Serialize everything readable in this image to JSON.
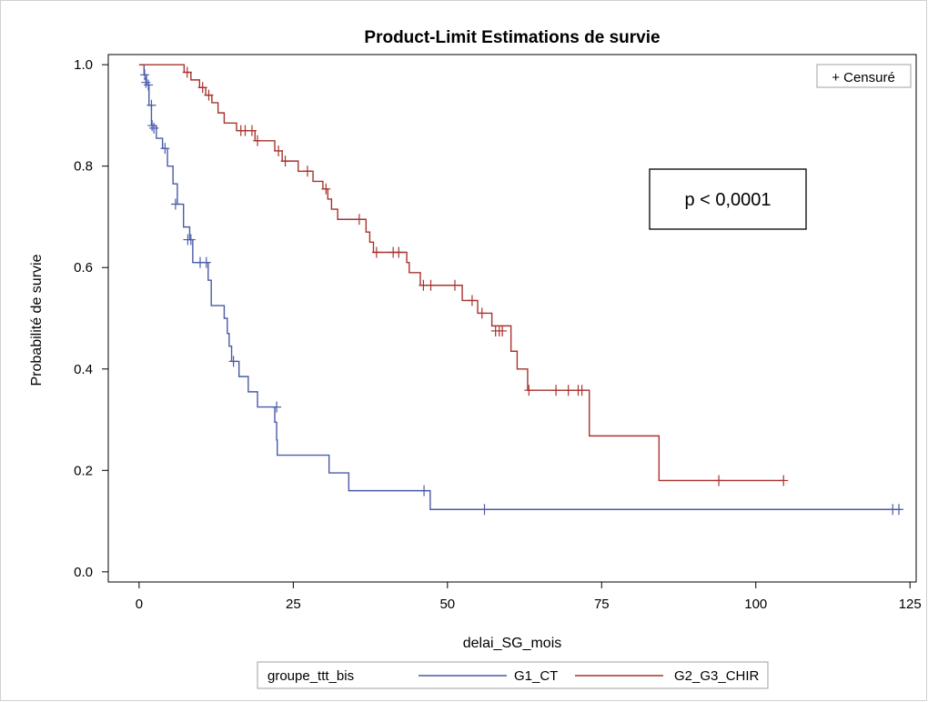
{
  "chart_data": {
    "type": "line",
    "subtype": "kaplan-meier step",
    "title": "Product-Limit Estimations de survie",
    "xlabel": "delai_SG_mois",
    "ylabel": "Probabilité de survie",
    "xlim": [
      -5,
      126
    ],
    "ylim": [
      -0.02,
      1.02
    ],
    "x_ticks": [
      0,
      25,
      50,
      75,
      100,
      125
    ],
    "y_ticks": [
      0.0,
      0.2,
      0.4,
      0.6,
      0.8,
      1.0
    ],
    "x_tick_labels": [
      "0",
      "25",
      "50",
      "75",
      "100",
      "125"
    ],
    "y_tick_labels": [
      "0.0",
      "0.2",
      "0.4",
      "0.6",
      "0.8",
      "1.0"
    ],
    "grid": false,
    "censor_legend": "+ Censuré",
    "annotation": "p < 0,0001",
    "legend_title": "groupe_ttt_bis",
    "legend_position": "bottom",
    "series": [
      {
        "name": "G1_CT",
        "color": "#4a5aa8",
        "steps": [
          [
            0,
            1.0
          ],
          [
            0.8,
            0.98
          ],
          [
            1.2,
            0.96
          ],
          [
            1.6,
            0.92
          ],
          [
            2.0,
            0.88
          ],
          [
            2.8,
            0.855
          ],
          [
            3.8,
            0.835
          ],
          [
            4.6,
            0.8
          ],
          [
            5.5,
            0.765
          ],
          [
            6.2,
            0.725
          ],
          [
            7.2,
            0.68
          ],
          [
            8.2,
            0.655
          ],
          [
            8.7,
            0.61
          ],
          [
            11.2,
            0.575
          ],
          [
            11.7,
            0.525
          ],
          [
            13.8,
            0.5
          ],
          [
            14.3,
            0.47
          ],
          [
            14.6,
            0.445
          ],
          [
            15.0,
            0.415
          ],
          [
            16.2,
            0.385
          ],
          [
            17.7,
            0.355
          ],
          [
            19.2,
            0.325
          ],
          [
            22.0,
            0.295
          ],
          [
            22.3,
            0.26
          ],
          [
            22.4,
            0.23
          ],
          [
            30.8,
            0.195
          ],
          [
            34.0,
            0.16
          ],
          [
            47.2,
            0.123
          ],
          [
            123.5,
            0.123
          ]
        ],
        "censored": [
          [
            0.9,
            0.98
          ],
          [
            1.1,
            0.965
          ],
          [
            1.5,
            0.96
          ],
          [
            2.0,
            0.92
          ],
          [
            2.4,
            0.875
          ],
          [
            2.1,
            0.88
          ],
          [
            4.2,
            0.835
          ],
          [
            5.9,
            0.725
          ],
          [
            7.9,
            0.655
          ],
          [
            8.4,
            0.655
          ],
          [
            9.9,
            0.61
          ],
          [
            10.9,
            0.61
          ],
          [
            15.3,
            0.415
          ],
          [
            22.3,
            0.325
          ],
          [
            46.2,
            0.16
          ],
          [
            56.0,
            0.123
          ],
          [
            122.2,
            0.123
          ],
          [
            123.2,
            0.123
          ]
        ]
      },
      {
        "name": "G2_G3_CHIR",
        "color": "#a8322d",
        "steps": [
          [
            0,
            1.0
          ],
          [
            7.3,
            0.985
          ],
          [
            8.4,
            0.97
          ],
          [
            9.8,
            0.955
          ],
          [
            10.8,
            0.94
          ],
          [
            11.8,
            0.925
          ],
          [
            12.8,
            0.905
          ],
          [
            13.8,
            0.885
          ],
          [
            15.8,
            0.87
          ],
          [
            18.8,
            0.85
          ],
          [
            22.0,
            0.83
          ],
          [
            23.2,
            0.81
          ],
          [
            25.8,
            0.79
          ],
          [
            28.2,
            0.77
          ],
          [
            29.8,
            0.755
          ],
          [
            30.6,
            0.735
          ],
          [
            31.2,
            0.715
          ],
          [
            32.2,
            0.695
          ],
          [
            36.8,
            0.67
          ],
          [
            37.4,
            0.65
          ],
          [
            38.0,
            0.63
          ],
          [
            43.4,
            0.61
          ],
          [
            43.8,
            0.59
          ],
          [
            45.6,
            0.565
          ],
          [
            52.4,
            0.535
          ],
          [
            54.9,
            0.51
          ],
          [
            57.2,
            0.485
          ],
          [
            60.3,
            0.435
          ],
          [
            61.3,
            0.4
          ],
          [
            63.0,
            0.358
          ],
          [
            73.0,
            0.268
          ],
          [
            84.3,
            0.18
          ],
          [
            104.5,
            0.18
          ]
        ],
        "censored": [
          [
            7.8,
            0.985
          ],
          [
            10.3,
            0.955
          ],
          [
            11.3,
            0.94
          ],
          [
            16.5,
            0.87
          ],
          [
            17.2,
            0.87
          ],
          [
            18.3,
            0.87
          ],
          [
            19.2,
            0.85
          ],
          [
            22.6,
            0.83
          ],
          [
            23.7,
            0.81
          ],
          [
            27.3,
            0.79
          ],
          [
            30.3,
            0.755
          ],
          [
            35.7,
            0.695
          ],
          [
            38.5,
            0.63
          ],
          [
            41.2,
            0.63
          ],
          [
            42.1,
            0.63
          ],
          [
            46.1,
            0.565
          ],
          [
            47.3,
            0.565
          ],
          [
            51.2,
            0.565
          ],
          [
            54.0,
            0.535
          ],
          [
            55.6,
            0.51
          ],
          [
            57.8,
            0.475
          ],
          [
            58.4,
            0.475
          ],
          [
            58.9,
            0.475
          ],
          [
            63.2,
            0.358
          ],
          [
            67.6,
            0.358
          ],
          [
            69.6,
            0.358
          ],
          [
            71.2,
            0.358
          ],
          [
            71.8,
            0.358
          ],
          [
            94.0,
            0.18
          ],
          [
            104.5,
            0.18
          ]
        ]
      }
    ]
  }
}
